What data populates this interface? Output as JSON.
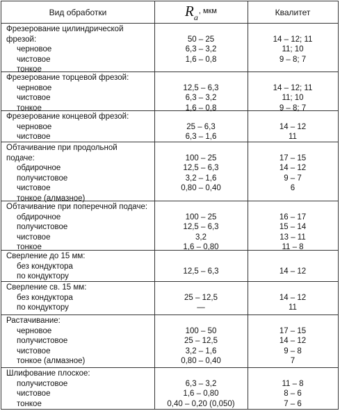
{
  "header": {
    "col1": "Вид обработки",
    "ra_symbol": "R",
    "ra_subscript": "a",
    "ra_unit": ", мкм",
    "col3": "Квалитет"
  },
  "sections": [
    {
      "title": [
        "Фрезерование цилиндрической",
        "фрезой:"
      ],
      "rows": [
        {
          "label": "черновое",
          "ra": "50 – 25",
          "q": "14 – 12; 11"
        },
        {
          "label": "чистовое",
          "ra": "6,3 – 3,2",
          "q": "11; 10"
        },
        {
          "label": "тонкое",
          "ra": "1,6 – 0,8",
          "q": "9 – 8; 7"
        }
      ]
    },
    {
      "title": [
        "Фрезерование торцевой фрезой:"
      ],
      "rows": [
        {
          "label": "черновое",
          "ra": "12,5 – 6,3",
          "q": "14 – 12; 11"
        },
        {
          "label": "чистовое",
          "ra": "6,3 – 3,2",
          "q": "11; 10"
        },
        {
          "label": "тонкое",
          "ra": "1,6 – 0,8",
          "q": "9 – 8; 7"
        }
      ]
    },
    {
      "title": [
        "Фрезерование концевой фрезой:"
      ],
      "rows": [
        {
          "label": "черновое",
          "ra": "25 – 6,3",
          "q": "14 – 12"
        },
        {
          "label": "чистовое",
          "ra": "6,3 – 1,6",
          "q": "11"
        }
      ]
    },
    {
      "title": [
        "Обтачивание при продольной",
        "подаче:"
      ],
      "rows": [
        {
          "label": "обдирочное",
          "ra": "100 – 25",
          "q": "17 – 15"
        },
        {
          "label": "получистовое",
          "ra": "12,5 – 6,3",
          "q": "14 – 12"
        },
        {
          "label": "чистовое",
          "ra": "3,2 – 1,6",
          "q": "9 – 7"
        },
        {
          "label": "тонкое (алмазное)",
          "ra": "0,80 – 0,40",
          "q": "6"
        }
      ]
    },
    {
      "title": [
        "Обтачивание при поперечной подаче:"
      ],
      "rows": [
        {
          "label": "обдирочное",
          "ra": "100 – 25",
          "q": "16 – 17"
        },
        {
          "label": "получистовое",
          "ra": "12,5 – 6,3",
          "q": "15 – 14"
        },
        {
          "label": "чистовое",
          "ra": "3,2",
          "q": "13 – 11"
        },
        {
          "label": "тонкое",
          "ra": "1,6 – 0,80",
          "q": "11 – 8"
        }
      ]
    },
    {
      "title": [
        "Сверление до 15 мм:"
      ],
      "rows": [
        {
          "label": "без кондуктора",
          "ra": "12,5 – 6,3",
          "q": "14 – 12"
        },
        {
          "label": "по кондуктору",
          "ra": "",
          "q": ""
        }
      ]
    },
    {
      "title": [
        "Сверление св. 15 мм:"
      ],
      "rows": [
        {
          "label": "без кондуктора",
          "ra": "25 – 12,5",
          "q": "14 – 12"
        },
        {
          "label": "по кондуктору",
          "ra": "—",
          "q": "11"
        }
      ]
    },
    {
      "title": [
        "Растачивание:"
      ],
      "rows": [
        {
          "label": "черновое",
          "ra": "100 – 50",
          "q": "17 – 15"
        },
        {
          "label": "получистовое",
          "ra": "25 – 12,5",
          "q": "14 – 12"
        },
        {
          "label": "чистовое",
          "ra": "3,2 – 1,6",
          "q": "9 – 8"
        },
        {
          "label": "тонкое (алмазное)",
          "ra": "0,80 – 0,40",
          "q": "7"
        }
      ]
    },
    {
      "title": [
        "Шлифование плоское:"
      ],
      "rows": [
        {
          "label": "получистовое",
          "ra": "6,3 – 3,2",
          "q": "11 – 8"
        },
        {
          "label": "чистовое",
          "ra": "1,6 – 0,80",
          "q": "8 – 6"
        },
        {
          "label": "тонкое",
          "ra": "0,40 – 0,20 (0,050)",
          "q": "7 – 6"
        }
      ]
    }
  ]
}
